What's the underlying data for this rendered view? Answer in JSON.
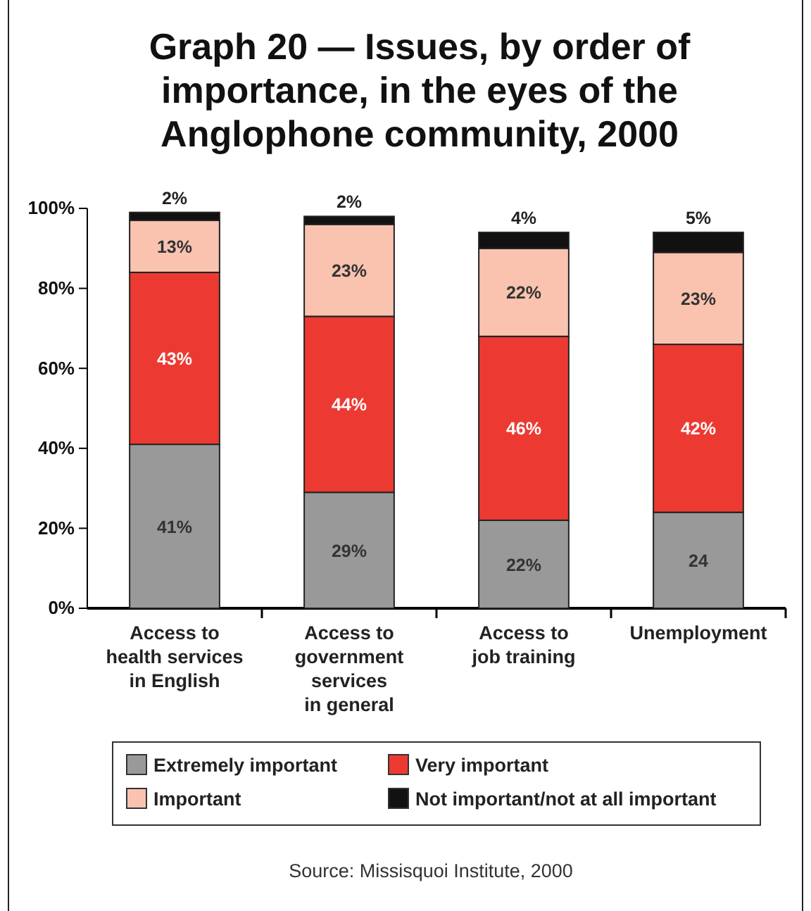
{
  "chart_data": {
    "type": "bar",
    "title": "Graph 20 — Issues, by order of importance, in the eyes of the Anglophone community, 2000",
    "categories": [
      "Access to\nhealth services\nin English",
      "Access to\ngovernment\nservices\nin general",
      "Access to\njob training",
      "Unemployment"
    ],
    "stacked": true,
    "series": [
      {
        "name": "Extremely important",
        "color": "#999999",
        "values": [
          41,
          29,
          22,
          24
        ],
        "value_labels": [
          "41%",
          "29%",
          "22%",
          "24"
        ]
      },
      {
        "name": "Very important",
        "color": "#ec3a32",
        "values": [
          43,
          44,
          46,
          42
        ],
        "value_labels": [
          "43%",
          "44%",
          "46%",
          "42%"
        ]
      },
      {
        "name": "Important",
        "color": "#f9c3b0",
        "values": [
          13,
          23,
          22,
          23
        ],
        "value_labels": [
          "13%",
          "23%",
          "22%",
          "23%"
        ]
      },
      {
        "name": "Not important/not at all important",
        "color": "#111111",
        "values": [
          2,
          2,
          4,
          5
        ],
        "value_labels": [
          "2%",
          "2%",
          "4%",
          "5%"
        ]
      }
    ],
    "ylim": [
      0,
      100
    ],
    "yticks": [
      {
        "value": 0,
        "label": "0%"
      },
      {
        "value": 20,
        "label": "20%"
      },
      {
        "value": 40,
        "label": "40%"
      },
      {
        "value": 60,
        "label": "60%"
      },
      {
        "value": 80,
        "label": "80%"
      },
      {
        "value": 100,
        "label": "100%"
      }
    ],
    "legend": "bottom",
    "grid": false,
    "annotations": [
      "Source: Missisquoi Institute, 2000"
    ]
  }
}
